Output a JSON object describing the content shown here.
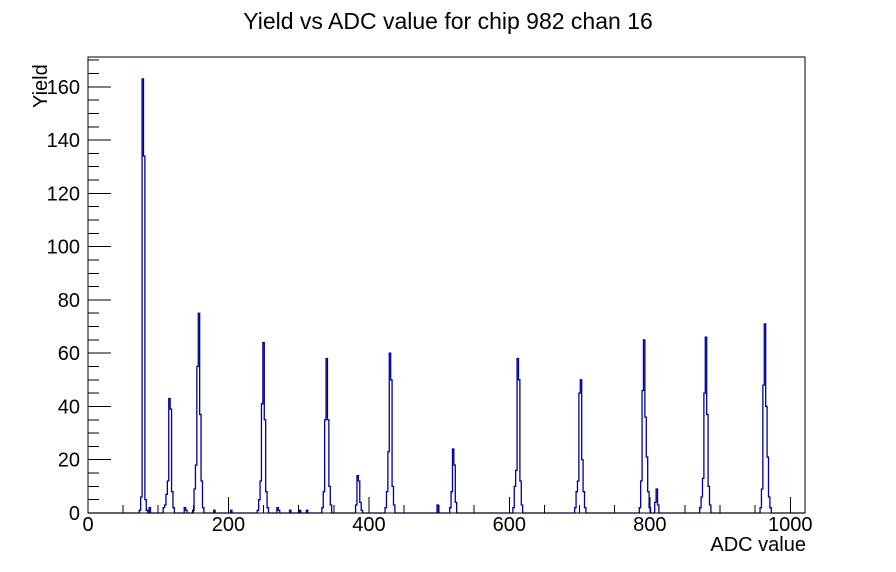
{
  "chart_data": {
    "type": "line",
    "subtype": "step-histogram",
    "title": "Yield vs ADC value for chip 982 chan 16",
    "xlabel": "ADC value",
    "ylabel": "Yield",
    "xlim": [
      0,
      1021
    ],
    "ylim": [
      0,
      171.2
    ],
    "grid": false,
    "legend": false,
    "line_color": "#000099",
    "frame_color": "#000000",
    "background_color": "#ffffff",
    "x_major_ticks": [
      0,
      200,
      400,
      600,
      800,
      1000
    ],
    "x_tick_labels": [
      "0",
      "200",
      "400",
      "600",
      "800",
      "1000"
    ],
    "x_minor_step": 50,
    "y_major_ticks": [
      0,
      20,
      40,
      60,
      80,
      100,
      120,
      140,
      160
    ],
    "y_tick_labels": [
      "0",
      "20",
      "40",
      "60",
      "80",
      "100",
      "120",
      "140",
      "160"
    ],
    "y_minor_step": 5,
    "bin_half_width": 1,
    "peaks_summary": [
      {
        "adc": 78,
        "yield": 163
      },
      {
        "adc": 116,
        "yield": 43
      },
      {
        "adc": 158,
        "yield": 75
      },
      {
        "adc": 250,
        "yield": 64
      },
      {
        "adc": 340,
        "yield": 58
      },
      {
        "adc": 384,
        "yield": 14
      },
      {
        "adc": 430,
        "yield": 60
      },
      {
        "adc": 520,
        "yield": 24
      },
      {
        "adc": 612,
        "yield": 58
      },
      {
        "adc": 702,
        "yield": 50
      },
      {
        "adc": 792,
        "yield": 65
      },
      {
        "adc": 880,
        "yield": 66
      },
      {
        "adc": 964,
        "yield": 71
      }
    ],
    "bins": [
      [
        74,
        1
      ],
      [
        76,
        6
      ],
      [
        78,
        163
      ],
      [
        80,
        134
      ],
      [
        82,
        5
      ],
      [
        84,
        1
      ],
      [
        88,
        2
      ],
      [
        108,
        2
      ],
      [
        110,
        3
      ],
      [
        112,
        7
      ],
      [
        114,
        12
      ],
      [
        116,
        43
      ],
      [
        118,
        39
      ],
      [
        120,
        8
      ],
      [
        122,
        2
      ],
      [
        138,
        2
      ],
      [
        140,
        1
      ],
      [
        150,
        1
      ],
      [
        152,
        9
      ],
      [
        154,
        18
      ],
      [
        156,
        55
      ],
      [
        158,
        75
      ],
      [
        160,
        37
      ],
      [
        162,
        12
      ],
      [
        164,
        2
      ],
      [
        180,
        1
      ],
      [
        204,
        1
      ],
      [
        242,
        1
      ],
      [
        244,
        5
      ],
      [
        246,
        12
      ],
      [
        248,
        41
      ],
      [
        250,
        64
      ],
      [
        252,
        35
      ],
      [
        254,
        8
      ],
      [
        256,
        2
      ],
      [
        270,
        2
      ],
      [
        272,
        1
      ],
      [
        288,
        1
      ],
      [
        302,
        1
      ],
      [
        312,
        1
      ],
      [
        334,
        2
      ],
      [
        336,
        8
      ],
      [
        338,
        35
      ],
      [
        340,
        58
      ],
      [
        342,
        35
      ],
      [
        344,
        10
      ],
      [
        346,
        3
      ],
      [
        382,
        3
      ],
      [
        384,
        14
      ],
      [
        386,
        12
      ],
      [
        388,
        4
      ],
      [
        390,
        1
      ],
      [
        424,
        2
      ],
      [
        426,
        8
      ],
      [
        428,
        23
      ],
      [
        430,
        60
      ],
      [
        432,
        50
      ],
      [
        434,
        10
      ],
      [
        436,
        3
      ],
      [
        498,
        3
      ],
      [
        516,
        2
      ],
      [
        518,
        8
      ],
      [
        520,
        24
      ],
      [
        522,
        18
      ],
      [
        524,
        4
      ],
      [
        606,
        2
      ],
      [
        608,
        10
      ],
      [
        610,
        16
      ],
      [
        612,
        58
      ],
      [
        614,
        50
      ],
      [
        616,
        12
      ],
      [
        618,
        3
      ],
      [
        694,
        2
      ],
      [
        696,
        8
      ],
      [
        698,
        12
      ],
      [
        700,
        45
      ],
      [
        702,
        50
      ],
      [
        704,
        20
      ],
      [
        706,
        8
      ],
      [
        708,
        2
      ],
      [
        786,
        2
      ],
      [
        788,
        12
      ],
      [
        790,
        46
      ],
      [
        792,
        65
      ],
      [
        794,
        36
      ],
      [
        796,
        21
      ],
      [
        798,
        8
      ],
      [
        800,
        2
      ],
      [
        808,
        4
      ],
      [
        810,
        9
      ],
      [
        812,
        3
      ],
      [
        872,
        2
      ],
      [
        874,
        6
      ],
      [
        876,
        13
      ],
      [
        878,
        45
      ],
      [
        880,
        66
      ],
      [
        882,
        37
      ],
      [
        884,
        10
      ],
      [
        886,
        3
      ],
      [
        958,
        2
      ],
      [
        960,
        9
      ],
      [
        962,
        48
      ],
      [
        964,
        71
      ],
      [
        966,
        40
      ],
      [
        968,
        21
      ],
      [
        970,
        6
      ],
      [
        972,
        2
      ]
    ]
  }
}
